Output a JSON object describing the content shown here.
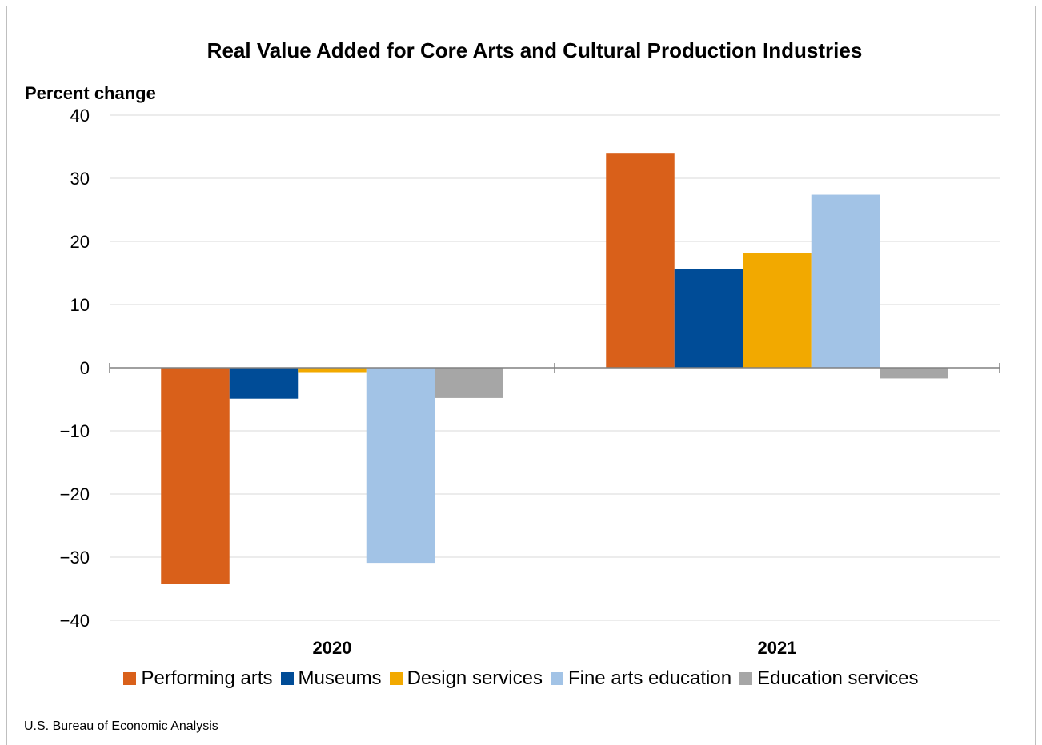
{
  "chart_data": {
    "type": "bar",
    "title": "Real Value Added for Core Arts and Cultural Production Industries",
    "ylabel": "Percent change",
    "xlabel": "",
    "categories": [
      "2020",
      "2021"
    ],
    "ylim": [
      -40,
      40
    ],
    "yticks": [
      40,
      30,
      20,
      10,
      0,
      -10,
      -20,
      -30,
      -40
    ],
    "ytick_labels": [
      "40",
      "30",
      "20",
      "10",
      "0",
      "−10",
      "−20",
      "−30",
      "−40"
    ],
    "grid": true,
    "legend_position": "bottom",
    "series": [
      {
        "name": "Performing arts",
        "color": "#d9601a",
        "values": [
          -34.2,
          33.9
        ]
      },
      {
        "name": "Museums",
        "color": "#004c97",
        "values": [
          -4.9,
          15.6
        ]
      },
      {
        "name": "Design services",
        "color": "#f2a900",
        "values": [
          -0.7,
          18.1
        ]
      },
      {
        "name": "Fine arts education",
        "color": "#a2c3e6",
        "values": [
          -30.9,
          27.4
        ]
      },
      {
        "name": "Education services",
        "color": "#a6a6a6",
        "values": [
          -4.8,
          -1.7
        ]
      }
    ]
  },
  "source": "U.S. Bureau of Economic Analysis"
}
